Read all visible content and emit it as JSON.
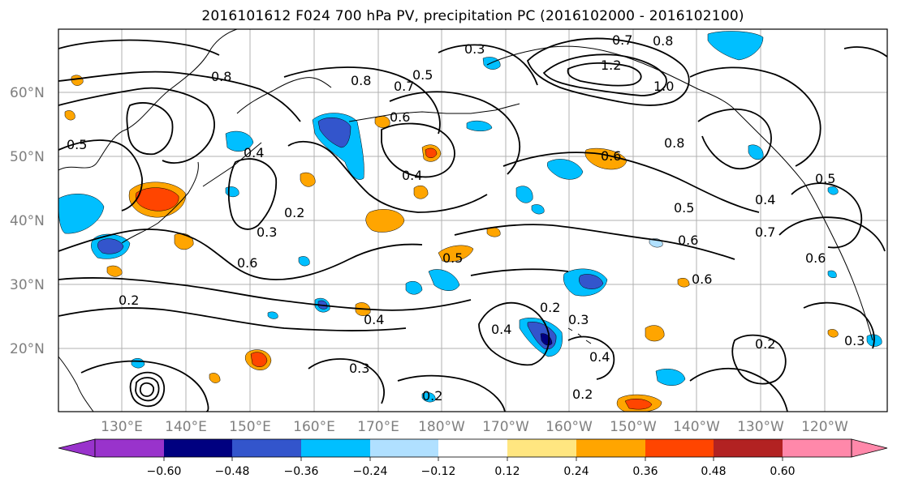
{
  "title": "2016101612 F024 700 hPa PV, precipitation PC (2016102000 - 2016102100)",
  "map": {
    "lat_labels": [
      "60°N",
      "50°N",
      "40°N",
      "30°N",
      "20°N"
    ],
    "lon_labels": [
      "130°E",
      "140°E",
      "150°E",
      "160°E",
      "170°E",
      "180°W",
      "170°W",
      "160°W",
      "150°W",
      "140°W",
      "130°W",
      "120°W"
    ],
    "contour_labels": [
      "0.8",
      "0.5",
      "0.8",
      "0.5",
      "0.7",
      "0.6",
      "0.4",
      "0.3",
      "0.7",
      "0.8",
      "1.2",
      "1.0",
      "0.8",
      "0.6",
      "0.5",
      "0.4",
      "0.2",
      "0.4",
      "0.4",
      "0.2",
      "0.3",
      "0.2",
      "0.4",
      "0.6",
      "0.5",
      "0.6",
      "0.6",
      "0.7",
      "0.6",
      "0.4",
      "0.3",
      "0.2",
      "0.3",
      "0.2",
      "0.2",
      "0.3",
      "0.5"
    ]
  },
  "colorbar": {
    "ticks": [
      "−0.60",
      "−0.48",
      "−0.36",
      "−0.24",
      "−0.12",
      "0.12",
      "0.24",
      "0.36",
      "0.48",
      "0.60"
    ],
    "colors": [
      "#9933cc",
      "#000080",
      "#3355cc",
      "#00bfff",
      "#b0e0ff",
      "#ffffff",
      "#ffe680",
      "#ffa500",
      "#ff4500",
      "#b22222",
      "#ff88aa"
    ]
  },
  "colors": {
    "land": "#000000",
    "grid": "#b0b0b0",
    "axis_label": "#7f7f7f"
  }
}
